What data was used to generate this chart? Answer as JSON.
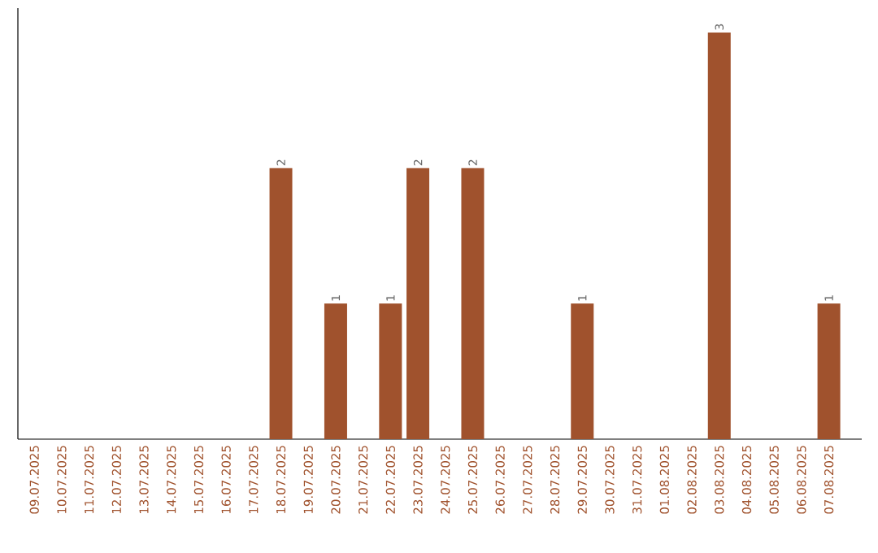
{
  "chart_data": {
    "type": "bar",
    "categories": [
      "09.07.2025",
      "10.07.2025",
      "11.07.2025",
      "12.07.2025",
      "13.07.2025",
      "14.07.2025",
      "15.07.2025",
      "16.07.2025",
      "17.07.2025",
      "18.07.2025",
      "19.07.2025",
      "20.07.2025",
      "21.07.2025",
      "22.07.2025",
      "23.07.2025",
      "24.07.2025",
      "25.07.2025",
      "26.07.2025",
      "27.07.2025",
      "28.07.2025",
      "29.07.2025",
      "30.07.2025",
      "31.07.2025",
      "01.08.2025",
      "02.08.2025",
      "03.08.2025",
      "04.08.2025",
      "05.08.2025",
      "06.08.2025",
      "07.08.2025"
    ],
    "values": [
      0,
      0,
      0,
      0,
      0,
      0,
      0,
      0,
      0,
      2,
      0,
      1,
      0,
      1,
      2,
      0,
      2,
      0,
      0,
      0,
      1,
      0,
      0,
      0,
      0,
      3,
      0,
      0,
      0,
      1
    ],
    "value_labels": [
      null,
      null,
      null,
      null,
      null,
      null,
      null,
      null,
      null,
      "2",
      null,
      "1",
      null,
      "1",
      "2",
      null,
      "2",
      null,
      null,
      null,
      "1",
      null,
      null,
      null,
      null,
      "3",
      null,
      null,
      null,
      "1"
    ],
    "color": "#a0522d",
    "tick_labels": "x"
  }
}
